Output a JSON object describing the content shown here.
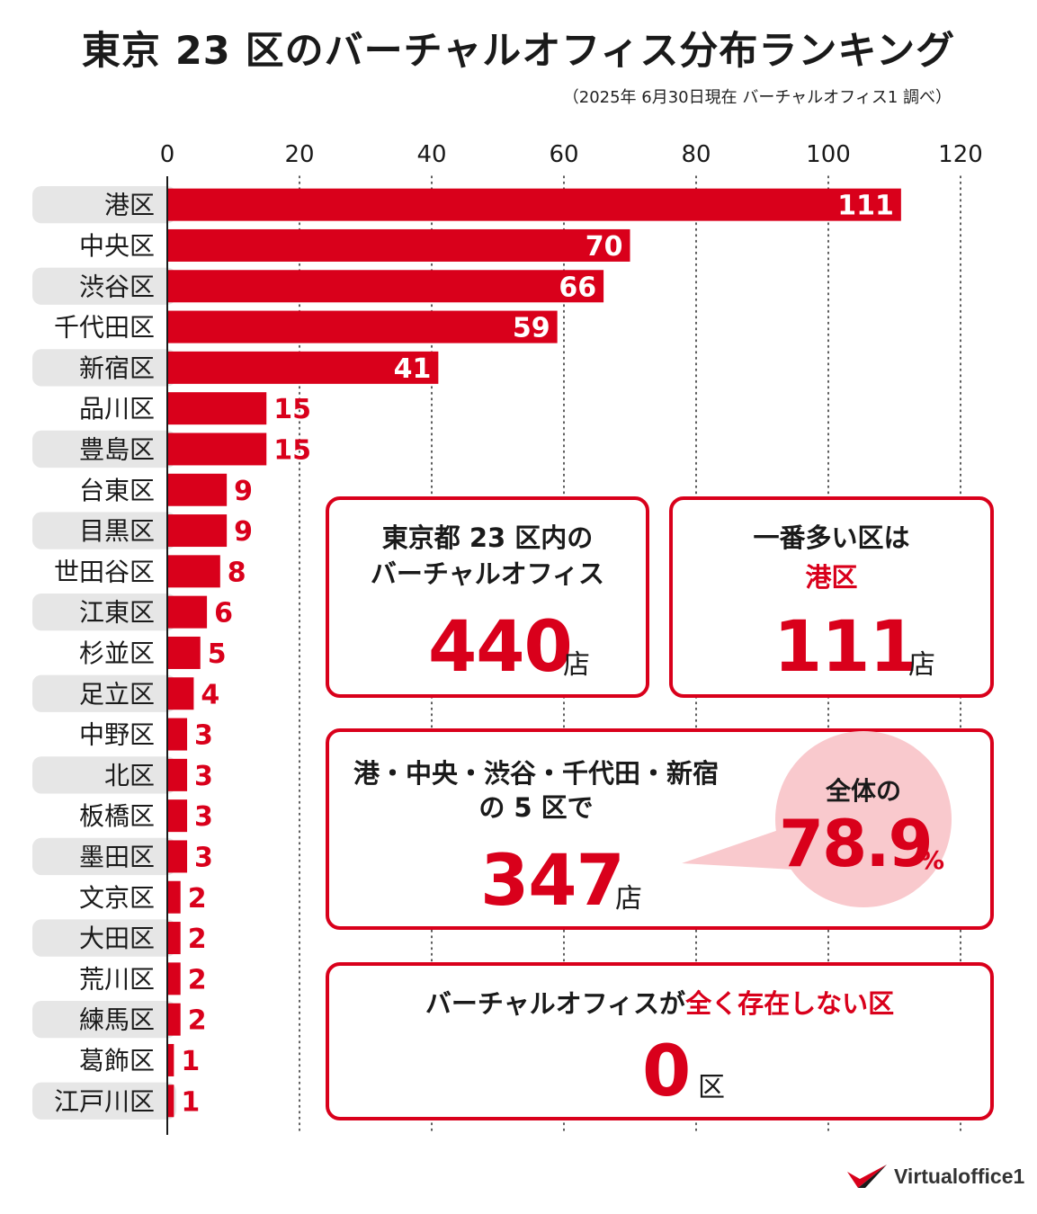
{
  "header": {
    "title": "東京 23 区のバーチャルオフィス分布ランキング",
    "subtitle": "（2025年 6月30日現在 バーチャルオフィス1 調べ）"
  },
  "chart_data": {
    "type": "bar",
    "orientation": "horizontal",
    "categories": [
      "港区",
      "中央区",
      "渋谷区",
      "千代田区",
      "新宿区",
      "品川区",
      "豊島区",
      "台東区",
      "目黒区",
      "世田谷区",
      "江東区",
      "杉並区",
      "足立区",
      "中野区",
      "北区",
      "板橋区",
      "墨田区",
      "文京区",
      "大田区",
      "荒川区",
      "練馬区",
      "葛飾区",
      "江戸川区"
    ],
    "values": [
      111,
      70,
      66,
      59,
      41,
      15,
      15,
      9,
      9,
      8,
      6,
      5,
      4,
      3,
      3,
      3,
      3,
      2,
      2,
      2,
      2,
      1,
      1
    ],
    "ticks": [
      0,
      20,
      40,
      60,
      80,
      100,
      120
    ],
    "xlim": [
      0,
      120
    ],
    "grid": "vertical-dotted",
    "bar_color": "#d9001b"
  },
  "cards": {
    "total": {
      "line1": "東京都 23 区内の",
      "line2": "バーチャルオフィス",
      "value": "440",
      "unit": "店"
    },
    "top": {
      "line1": "一番多い区は",
      "line2": "港区",
      "value": "111",
      "unit": "店"
    },
    "top5": {
      "line1": "港・中央・渋谷・千代田・新宿",
      "line2": "の 5 区で",
      "value": "347",
      "unit": "店",
      "bubble_label": "全体の",
      "bubble_value": "78.9",
      "bubble_unit": "%"
    },
    "none": {
      "label_prefix": "バーチャルオフィスが",
      "label_highlight": "全く存在しない区",
      "value": "0",
      "unit": "区"
    }
  },
  "logo": {
    "text": "Virtualoffice1",
    "icon": "v-check-logo-icon"
  },
  "colors": {
    "accent": "#d9001b",
    "label_bg": "#e6e6e6",
    "bubble": "#f9c9cd"
  }
}
